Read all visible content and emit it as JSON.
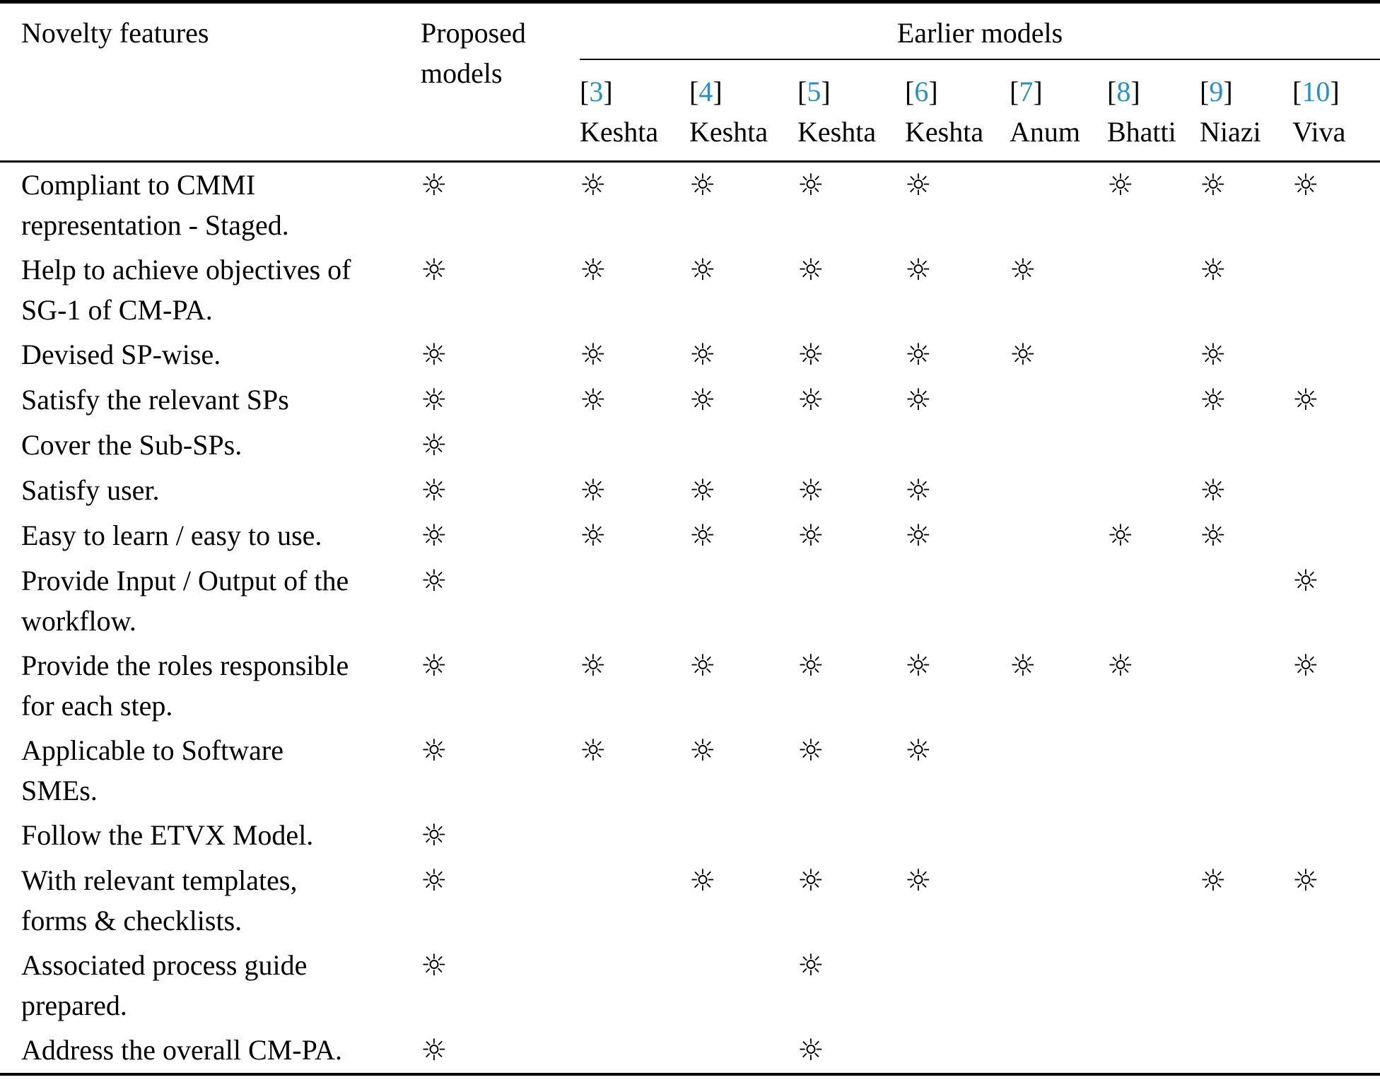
{
  "table": {
    "columns": {
      "feature_header": "Novelty features",
      "proposed_header": "Proposed\nmodels",
      "earlier_group_header": "Earlier models",
      "bracket_open": "[",
      "bracket_close": "]",
      "earlier": [
        {
          "ref": "3",
          "name": "Keshta"
        },
        {
          "ref": "4",
          "name": "Keshta"
        },
        {
          "ref": "5",
          "name": "Keshta"
        },
        {
          "ref": "6",
          "name": "Keshta"
        },
        {
          "ref": "7",
          "name": "Anum"
        },
        {
          "ref": "8",
          "name": "Bhatti"
        },
        {
          "ref": "9",
          "name": "Niazi"
        },
        {
          "ref": "10",
          "name": "Viva"
        }
      ]
    },
    "sun_symbol": "☼",
    "citation_link_color": "#2490c9",
    "rows": [
      {
        "feature": "Compliant to CMMI\nrepresentation - Staged.",
        "marks": [
          true,
          true,
          true,
          true,
          true,
          false,
          true,
          true,
          true
        ]
      },
      {
        "feature": "Help to achieve objectives of\nSG-1 of CM-PA.",
        "marks": [
          true,
          true,
          true,
          true,
          true,
          true,
          false,
          true,
          false
        ]
      },
      {
        "feature": "Devised SP-wise.",
        "marks": [
          true,
          true,
          true,
          true,
          true,
          true,
          false,
          true,
          false
        ]
      },
      {
        "feature": "Satisfy the relevant SPs",
        "marks": [
          true,
          true,
          true,
          true,
          true,
          false,
          false,
          true,
          true
        ]
      },
      {
        "feature": "Cover the Sub-SPs.",
        "marks": [
          true,
          false,
          false,
          false,
          false,
          false,
          false,
          false,
          false
        ]
      },
      {
        "feature": "Satisfy user.",
        "marks": [
          true,
          true,
          true,
          true,
          true,
          false,
          false,
          true,
          false
        ]
      },
      {
        "feature": "Easy to learn / easy to use.",
        "marks": [
          true,
          true,
          true,
          true,
          true,
          false,
          true,
          true,
          false
        ]
      },
      {
        "feature": "Provide Input / Output of the\nworkflow.",
        "marks": [
          true,
          false,
          false,
          false,
          false,
          false,
          false,
          false,
          true
        ]
      },
      {
        "feature": "Provide the roles responsible\nfor each step.",
        "marks": [
          true,
          true,
          true,
          true,
          true,
          true,
          true,
          false,
          true
        ]
      },
      {
        "feature": "Applicable to Software\nSMEs.",
        "marks": [
          true,
          true,
          true,
          true,
          true,
          false,
          false,
          false,
          false
        ]
      },
      {
        "feature": "Follow the ETVX Model.",
        "marks": [
          true,
          false,
          false,
          false,
          false,
          false,
          false,
          false,
          false
        ]
      },
      {
        "feature": "With relevant templates,\nforms & checklists.",
        "marks": [
          true,
          false,
          true,
          true,
          true,
          false,
          false,
          true,
          true
        ]
      },
      {
        "feature": "Associated process guide\nprepared.",
        "marks": [
          true,
          false,
          false,
          true,
          false,
          false,
          false,
          false,
          false
        ]
      },
      {
        "feature": "Address the overall CM-PA.",
        "marks": [
          true,
          false,
          false,
          true,
          false,
          false,
          false,
          false,
          false
        ]
      }
    ]
  }
}
